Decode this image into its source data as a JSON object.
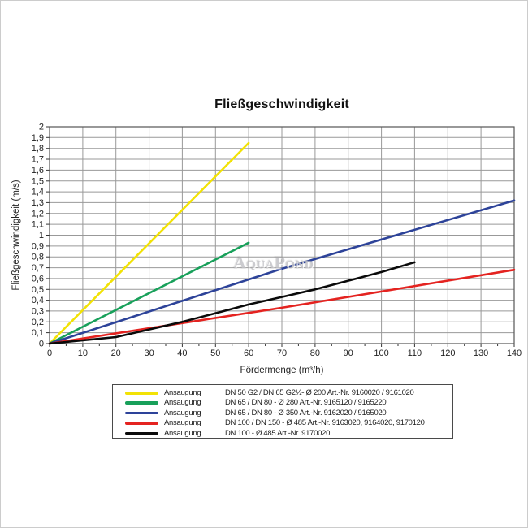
{
  "chart_data": {
    "type": "line",
    "title": "Fließgeschwindigkeit",
    "xlabel": "Fördermenge (m³/h)",
    "ylabel": "Fließgeschwindigkeit (m/s)",
    "xlim": [
      0,
      140
    ],
    "ylim": [
      0,
      2
    ],
    "x_tick_step": 10,
    "y_tick_step": 0.1,
    "x_minor_step": 5,
    "grid": true,
    "legend_position": "bottom",
    "x_ticks": [
      "0",
      "10",
      "20",
      "30",
      "40",
      "50",
      "60",
      "70",
      "80",
      "90",
      "100",
      "110",
      "120",
      "130",
      "140"
    ],
    "y_ticks": [
      "0",
      "0,1",
      "0,2",
      "0,3",
      "0,4",
      "0,5",
      "0,6",
      "0,7",
      "0,8",
      "0,9",
      "1",
      "1,1",
      "1,2",
      "1,3",
      "1,4",
      "1,5",
      "1,6",
      "1,7",
      "1,8",
      "1,9",
      "2"
    ],
    "series": [
      {
        "id": "yellow",
        "name": "Ansaugung DN 50 G2 / DN 65 G2½- Ø 200",
        "color": "#f2e205",
        "points": [
          [
            0,
            0
          ],
          [
            60,
            1.85
          ]
        ]
      },
      {
        "id": "green",
        "name": "Ansaugung DN 65 / DN 80 - Ø 280",
        "color": "#18a05a",
        "points": [
          [
            0,
            0
          ],
          [
            60,
            0.93
          ]
        ]
      },
      {
        "id": "blue",
        "name": "Ansaugung DN 65 / DN 80 - Ø 350",
        "color": "#2d4399",
        "points": [
          [
            0,
            0
          ],
          [
            70,
            0.69
          ],
          [
            140,
            1.32
          ]
        ]
      },
      {
        "id": "red",
        "name": "Ansaugung DN 100 / DN 150 - Ø 485",
        "color": "#e42320",
        "points": [
          [
            0,
            0
          ],
          [
            70,
            0.33
          ],
          [
            140,
            0.68
          ]
        ]
      },
      {
        "id": "black",
        "name": "Ansaugung DN 100 - Ø 485",
        "color": "#0a0a0a",
        "points": [
          [
            0,
            0
          ],
          [
            10,
            0.03
          ],
          [
            20,
            0.06
          ],
          [
            30,
            0.13
          ],
          [
            40,
            0.2
          ],
          [
            50,
            0.28
          ],
          [
            60,
            0.36
          ],
          [
            70,
            0.43
          ],
          [
            80,
            0.5
          ],
          [
            90,
            0.58
          ],
          [
            100,
            0.66
          ],
          [
            110,
            0.75
          ]
        ]
      }
    ]
  },
  "watermark": {
    "text": "AquaPond"
  },
  "legend": {
    "rows": [
      {
        "color": "#f2e205",
        "label": "Ansaugung",
        "description": "DN 50 G2 / DN 65 G2½- Ø 200 Art.-Nr. 9160020 / 9161020"
      },
      {
        "color": "#18a05a",
        "label": "Ansaugung",
        "description": "DN 65 / DN 80 - Ø 280 Art.-Nr. 9165120 / 9165220"
      },
      {
        "color": "#2d4399",
        "label": "Ansaugung",
        "description": "DN 65 / DN 80 - Ø 350 Art.-Nr. 9162020 / 9165020"
      },
      {
        "color": "#e42320",
        "label": "Ansaugung",
        "description": "DN 100 / DN 150 - Ø 485 Art.-Nr. 9163020, 9164020, 9170120"
      },
      {
        "color": "#0a0a0a",
        "label": "Ansaugung",
        "description": "DN 100 - Ø 485 Art.-Nr. 9170020"
      }
    ]
  }
}
